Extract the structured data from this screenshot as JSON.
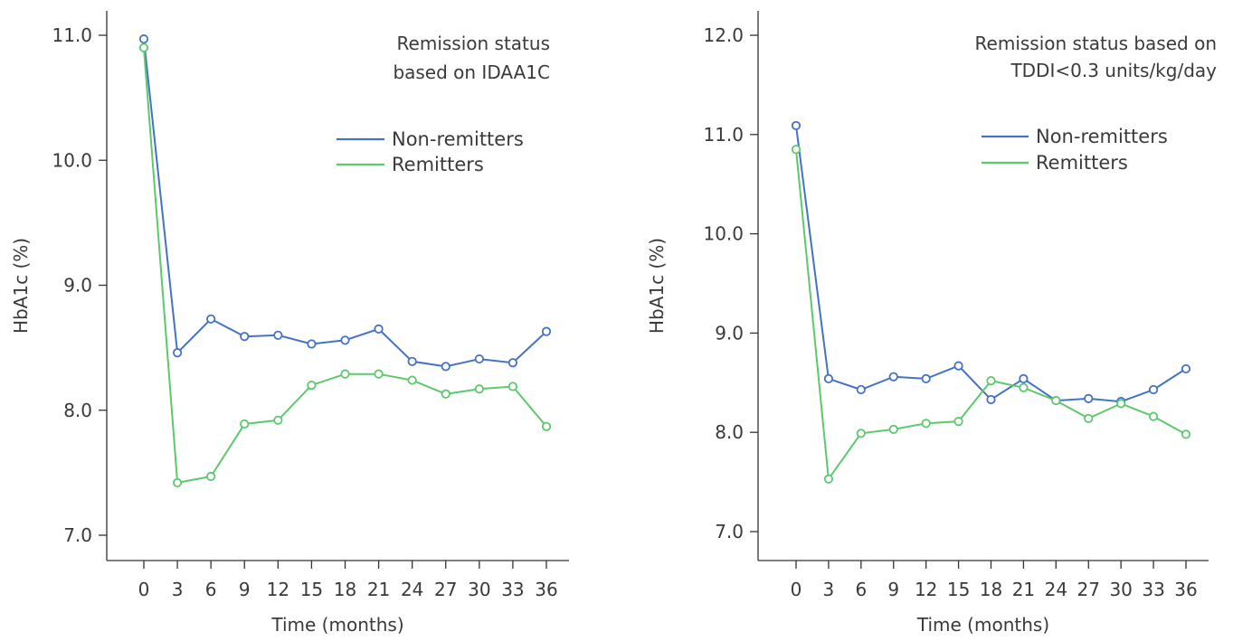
{
  "chart_data": [
    {
      "type": "line",
      "annotation": [
        "Remission status",
        "based on IDAA1C"
      ],
      "xlabel": "Time (months)",
      "ylabel": "HbA1c (%)",
      "x": [
        0,
        3,
        6,
        9,
        12,
        15,
        18,
        21,
        24,
        27,
        30,
        33,
        36
      ],
      "yticks": [
        "7.0",
        "8.0",
        "9.0",
        "10.0",
        "11.0"
      ],
      "ylim": [
        6.8,
        11.2
      ],
      "legend_position": "upper-right",
      "grid": false,
      "series": [
        {
          "name": "Non-remitters",
          "color": "#4472c4",
          "values": [
            10.97,
            8.46,
            8.73,
            8.59,
            8.6,
            8.53,
            8.56,
            8.65,
            8.39,
            8.35,
            8.41,
            8.38,
            8.63
          ]
        },
        {
          "name": "Remitters",
          "color": "#5cc96b",
          "values": [
            10.9,
            7.42,
            7.47,
            7.89,
            7.92,
            8.2,
            8.29,
            8.29,
            8.24,
            8.13,
            8.17,
            8.19,
            7.87
          ]
        }
      ]
    },
    {
      "type": "line",
      "annotation": [
        "Remission status based on",
        "TDDI<0.3 units/kg/day"
      ],
      "xlabel": "Time (months)",
      "ylabel": "HbA1c (%)",
      "x": [
        0,
        3,
        6,
        9,
        12,
        15,
        18,
        21,
        24,
        27,
        30,
        33,
        36
      ],
      "yticks": [
        "7.0",
        "8.0",
        "9.0",
        "10.0",
        "11.0",
        "12.0"
      ],
      "ylim": [
        6.8,
        12.2
      ],
      "legend_position": "upper-right",
      "grid": false,
      "series": [
        {
          "name": "Non-remitters",
          "color": "#4472c4",
          "values": [
            11.09,
            8.54,
            8.43,
            8.56,
            8.54,
            8.67,
            8.33,
            8.54,
            8.32,
            8.34,
            8.31,
            8.43,
            8.64
          ]
        },
        {
          "name": "Remitters",
          "color": "#5cc96b",
          "values": [
            10.85,
            7.53,
            7.99,
            8.03,
            8.09,
            8.11,
            8.52,
            8.45,
            8.32,
            8.14,
            8.29,
            8.16,
            7.98
          ]
        }
      ]
    }
  ]
}
